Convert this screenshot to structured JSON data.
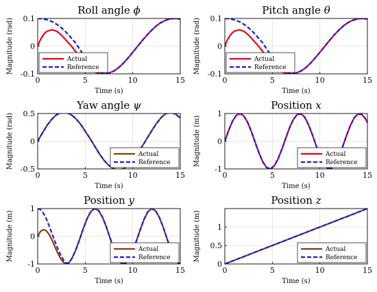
{
  "figure": {
    "colors": {
      "actual": "#e8001c",
      "reference": "#1a1ad6",
      "actual_dark": "#8a3a0a",
      "grid": "#dcdcdc"
    }
  },
  "chart_data": [
    {
      "type": "line",
      "title": "Roll angle",
      "title_symbol": "ϕ",
      "xlabel": "Time (s)",
      "ylabel": "Magnitude (rad)",
      "xlim": [
        0,
        15
      ],
      "ylim": [
        -0.1,
        0.1
      ],
      "xticks": [
        0,
        5,
        10,
        15
      ],
      "yticks": [
        -0.1,
        0,
        0.1
      ],
      "xtick_labels": [
        "0",
        "5",
        "10",
        "15"
      ],
      "ytick_labels": [
        "-0.1",
        "0",
        "0.1"
      ],
      "grid": true,
      "legend": {
        "position": "bottom-left",
        "entries": [
          "Actual",
          "Reference"
        ]
      },
      "series": [
        {
          "name": "Actual",
          "style": "solid",
          "color": "actual",
          "x": [
            0,
            0.25,
            0.5,
            0.75,
            1,
            1.5,
            2,
            2.5,
            3,
            3.5,
            4,
            4.5,
            5,
            5.5,
            6,
            6.5,
            7,
            7.5,
            8,
            8.5,
            9,
            9.5,
            10,
            10.5,
            11,
            11.5,
            12,
            12.5,
            13,
            13.5,
            14,
            14.5,
            15
          ],
          "y": [
            0,
            0.021,
            0.036,
            0.047,
            0.054,
            0.059,
            0.054,
            0.04,
            0.021,
            0.002,
            -0.02,
            -0.043,
            -0.064,
            -0.081,
            -0.093,
            -0.099,
            -0.1,
            -0.097,
            -0.09,
            -0.078,
            -0.062,
            -0.043,
            -0.022,
            -0.001,
            0.02,
            0.04,
            0.058,
            0.074,
            0.086,
            0.094,
            0.099,
            0.1,
            0.098
          ]
        },
        {
          "name": "Reference",
          "style": "dashed",
          "color": "reference",
          "x": [
            0,
            0.5,
            1,
            1.5,
            2,
            2.5,
            3,
            3.5,
            4,
            4.5,
            5,
            5.5,
            6,
            6.5,
            7,
            7.5,
            8,
            8.5,
            9,
            9.5,
            10,
            10.5,
            11,
            11.5,
            12,
            12.5,
            13,
            13.5,
            14,
            14.5,
            15
          ],
          "y": [
            0.1,
            0.099,
            0.095,
            0.089,
            0.079,
            0.066,
            0.05,
            0.031,
            0.011,
            -0.015,
            -0.042,
            -0.066,
            -0.085,
            -0.096,
            -0.1,
            -0.097,
            -0.09,
            -0.078,
            -0.062,
            -0.043,
            -0.022,
            -0.001,
            0.02,
            0.04,
            0.058,
            0.074,
            0.086,
            0.094,
            0.099,
            0.1,
            0.098
          ]
        }
      ]
    },
    {
      "type": "line",
      "title": "Pitch angle",
      "title_symbol": "θ",
      "xlabel": "Time (s)",
      "ylabel": "Magnitude (rad)",
      "xlim": [
        0,
        15
      ],
      "ylim": [
        -0.1,
        0.1
      ],
      "xticks": [
        0,
        5,
        10,
        15
      ],
      "yticks": [
        -0.1,
        0,
        0.1
      ],
      "xtick_labels": [
        "0",
        "5",
        "10",
        "15"
      ],
      "ytick_labels": [
        "-0.1",
        "0",
        "0.1"
      ],
      "grid": true,
      "legend": {
        "position": "bottom-left",
        "entries": [
          "Actual",
          "Reference"
        ]
      },
      "series": [
        {
          "name": "Actual",
          "style": "solid",
          "color": "actual",
          "x": [
            0,
            0.25,
            0.5,
            0.75,
            1,
            1.5,
            2,
            2.5,
            3,
            3.5,
            4,
            4.5,
            5,
            5.5,
            6,
            6.5,
            7,
            7.5,
            8,
            8.5,
            9,
            9.5,
            10,
            10.5,
            11,
            11.5,
            12,
            12.5,
            13,
            13.5,
            14,
            14.5,
            15
          ],
          "y": [
            0,
            0.021,
            0.036,
            0.047,
            0.054,
            0.059,
            0.054,
            0.04,
            0.021,
            0.002,
            -0.02,
            -0.043,
            -0.064,
            -0.081,
            -0.093,
            -0.099,
            -0.1,
            -0.097,
            -0.09,
            -0.078,
            -0.062,
            -0.043,
            -0.022,
            -0.001,
            0.02,
            0.04,
            0.058,
            0.074,
            0.086,
            0.094,
            0.099,
            0.1,
            0.098
          ]
        },
        {
          "name": "Reference",
          "style": "dashed",
          "color": "reference",
          "x": [
            0,
            0.5,
            1,
            1.5,
            2,
            2.5,
            3,
            3.5,
            4,
            4.5,
            5,
            5.5,
            6,
            6.5,
            7,
            7.5,
            8,
            8.5,
            9,
            9.5,
            10,
            10.5,
            11,
            11.5,
            12,
            12.5,
            13,
            13.5,
            14,
            14.5,
            15
          ],
          "y": [
            0.1,
            0.099,
            0.095,
            0.089,
            0.079,
            0.066,
            0.05,
            0.031,
            0.011,
            -0.015,
            -0.042,
            -0.066,
            -0.085,
            -0.096,
            -0.1,
            -0.097,
            -0.09,
            -0.078,
            -0.062,
            -0.043,
            -0.022,
            -0.001,
            0.02,
            0.04,
            0.058,
            0.074,
            0.086,
            0.094,
            0.099,
            0.1,
            0.098
          ]
        }
      ]
    },
    {
      "type": "line",
      "title": "Yaw angle",
      "title_symbol": "ψ",
      "xlabel": "Time (s)",
      "ylabel": "Magnitude (rad)",
      "xlim": [
        0,
        15
      ],
      "ylim": [
        -0.5,
        0.5
      ],
      "xticks": [
        0,
        5,
        10,
        15
      ],
      "yticks": [
        -0.5,
        0,
        0.5
      ],
      "xtick_labels": [
        "0",
        "5",
        "10",
        "15"
      ],
      "ytick_labels": [
        "-0.5",
        "0",
        "0.5"
      ],
      "grid": true,
      "legend": {
        "position": "bottom-right",
        "entries": [
          "Actual",
          "Reference"
        ]
      },
      "series": [
        {
          "name": "Actual",
          "style": "solid",
          "color": "actual_dark",
          "x": [
            0,
            0.5,
            1,
            1.5,
            2,
            2.5,
            3,
            3.5,
            4,
            4.5,
            5,
            5.5,
            6,
            6.5,
            7,
            7.5,
            8,
            8.5,
            9,
            9.5,
            10,
            10.5,
            11,
            11.5,
            12,
            12.5,
            13,
            13.5,
            14,
            14.5,
            15
          ],
          "y": [
            0,
            0.15,
            0.29,
            0.4,
            0.48,
            0.52,
            0.52,
            0.48,
            0.41,
            0.31,
            0.18,
            0.05,
            -0.09,
            -0.23,
            -0.35,
            -0.44,
            -0.5,
            -0.52,
            -0.5,
            -0.44,
            -0.35,
            -0.23,
            -0.09,
            0.05,
            0.19,
            0.32,
            0.43,
            0.5,
            0.52,
            0.49,
            0.42
          ]
        },
        {
          "name": "Reference",
          "style": "dashed",
          "color": "reference",
          "x": [
            0,
            0.5,
            1,
            1.5,
            2,
            2.5,
            3,
            3.5,
            4,
            4.5,
            5,
            5.5,
            6,
            6.5,
            7,
            7.5,
            8,
            8.5,
            9,
            9.5,
            10,
            10.5,
            11,
            11.5,
            12,
            12.5,
            13,
            13.5,
            14,
            14.5,
            15
          ],
          "y": [
            0,
            0.15,
            0.29,
            0.4,
            0.48,
            0.52,
            0.52,
            0.48,
            0.41,
            0.31,
            0.18,
            0.05,
            -0.09,
            -0.23,
            -0.35,
            -0.44,
            -0.5,
            -0.52,
            -0.5,
            -0.44,
            -0.35,
            -0.23,
            -0.09,
            0.05,
            0.19,
            0.32,
            0.43,
            0.5,
            0.52,
            0.49,
            0.42
          ]
        }
      ]
    },
    {
      "type": "line",
      "title": "Position",
      "title_symbol": "x",
      "xlabel": "Time (s)",
      "ylabel": "Magnitude (m)",
      "xlim": [
        0,
        15
      ],
      "ylim": [
        -1,
        1
      ],
      "xticks": [
        0,
        5,
        10,
        15
      ],
      "yticks": [
        -1,
        0,
        1
      ],
      "xtick_labels": [
        "0",
        "5",
        "10",
        "15"
      ],
      "ytick_labels": [
        "-1",
        "0",
        "1"
      ],
      "grid": true,
      "legend": {
        "position": "bottom-right",
        "entries": [
          "Actual",
          "Reference"
        ]
      },
      "series": [
        {
          "name": "Actual",
          "style": "solid",
          "color": "actual",
          "x": [
            0,
            0.4,
            0.8,
            1.2,
            1.6,
            2,
            2.4,
            2.8,
            3.2,
            3.6,
            4,
            4.4,
            4.8,
            5.2,
            5.6,
            6,
            6.4,
            6.8,
            7.2,
            7.6,
            8,
            8.4,
            8.8,
            9.2,
            9.6,
            10,
            10.4,
            10.8,
            11.2,
            11.6,
            12,
            12.4,
            12.8,
            13.2,
            13.6,
            14,
            14.4,
            14.8,
            15
          ],
          "y": [
            0,
            0.39,
            0.72,
            0.93,
            1,
            0.91,
            0.68,
            0.34,
            -0.05,
            -0.43,
            -0.75,
            -0.95,
            -1,
            -0.89,
            -0.64,
            -0.29,
            0.1,
            0.48,
            0.78,
            0.96,
            0.99,
            0.87,
            0.6,
            0.24,
            -0.15,
            -0.52,
            -0.81,
            -0.97,
            -0.98,
            -0.84,
            -0.56,
            -0.19,
            0.2,
            0.56,
            0.84,
            0.98,
            0.97,
            0.81,
            0.67
          ]
        },
        {
          "name": "Reference",
          "style": "dashed",
          "color": "reference",
          "x": [
            0,
            0.4,
            0.8,
            1.2,
            1.6,
            2,
            2.4,
            2.8,
            3.2,
            3.6,
            4,
            4.4,
            4.8,
            5.2,
            5.6,
            6,
            6.4,
            6.8,
            7.2,
            7.6,
            8,
            8.4,
            8.8,
            9.2,
            9.6,
            10,
            10.4,
            10.8,
            11.2,
            11.6,
            12,
            12.4,
            12.8,
            13.2,
            13.6,
            14,
            14.4,
            14.8,
            15
          ],
          "y": [
            0,
            0.39,
            0.72,
            0.93,
            1,
            0.91,
            0.68,
            0.34,
            -0.05,
            -0.43,
            -0.75,
            -0.95,
            -1,
            -0.89,
            -0.64,
            -0.29,
            0.1,
            0.48,
            0.78,
            0.96,
            0.99,
            0.87,
            0.6,
            0.24,
            -0.15,
            -0.52,
            -0.81,
            -0.97,
            -0.98,
            -0.84,
            -0.56,
            -0.19,
            0.2,
            0.56,
            0.84,
            0.98,
            0.97,
            0.81,
            0.67
          ]
        }
      ]
    },
    {
      "type": "line",
      "title": "Position",
      "title_symbol": "y",
      "xlabel": "Time (s)",
      "ylabel": "Magnitude (m)",
      "xlim": [
        0,
        15
      ],
      "ylim": [
        -1,
        1
      ],
      "xticks": [
        0,
        5,
        10,
        15
      ],
      "yticks": [
        -1,
        0,
        1
      ],
      "xtick_labels": [
        "0",
        "5",
        "10",
        "15"
      ],
      "ytick_labels": [
        "-1",
        "0",
        "1"
      ],
      "grid": true,
      "legend": {
        "position": "bottom-right",
        "entries": [
          "Actual",
          "Reference"
        ]
      },
      "series": [
        {
          "name": "Actual",
          "style": "solid",
          "color": "actual_dark",
          "x": [
            0,
            0.3,
            0.6,
            0.9,
            1.2,
            1.5,
            1.8,
            2.1,
            2.4,
            2.7,
            3,
            3.3,
            3.6,
            4,
            4.4,
            4.8,
            5.2,
            5.6,
            6,
            6.4,
            6.8,
            7.2,
            7.6,
            8,
            8.4,
            8.8,
            9.2,
            9.6,
            10,
            10.4,
            10.8,
            11.2,
            11.6,
            12,
            12.4,
            12.8,
            13.2,
            13.6,
            14,
            14.4,
            14.8,
            15
          ],
          "y": [
            0,
            0.18,
            0.24,
            0.2,
            0.07,
            -0.13,
            -0.37,
            -0.6,
            -0.8,
            -0.94,
            -1,
            -0.95,
            -0.8,
            -0.5,
            -0.12,
            0.28,
            0.64,
            0.9,
            1,
            0.93,
            0.7,
            0.36,
            -0.05,
            -0.45,
            -0.79,
            -0.97,
            -0.99,
            -0.84,
            -0.54,
            -0.15,
            0.25,
            0.62,
            0.89,
            1,
            0.92,
            0.68,
            0.33,
            -0.08,
            -0.48,
            -0.8,
            -0.97,
            -0.99
          ]
        },
        {
          "name": "Reference",
          "style": "dashed",
          "color": "reference",
          "x": [
            0,
            0.3,
            0.6,
            0.9,
            1.2,
            1.5,
            1.8,
            2.1,
            2.4,
            2.7,
            3,
            3.3,
            3.6,
            4,
            4.4,
            4.8,
            5.2,
            5.6,
            6,
            6.4,
            6.8,
            7.2,
            7.6,
            8,
            8.4,
            8.8,
            9.2,
            9.6,
            10,
            10.4,
            10.8,
            11.2,
            11.6,
            12,
            12.4,
            12.8,
            13.2,
            13.6,
            14,
            14.4,
            14.8,
            15
          ],
          "y": [
            1,
            0.96,
            0.83,
            0.63,
            0.38,
            0.1,
            -0.18,
            -0.44,
            -0.67,
            -0.85,
            -0.97,
            -0.95,
            -0.8,
            -0.5,
            -0.12,
            0.28,
            0.64,
            0.9,
            1,
            0.93,
            0.7,
            0.36,
            -0.05,
            -0.45,
            -0.79,
            -0.97,
            -0.99,
            -0.84,
            -0.54,
            -0.15,
            0.25,
            0.62,
            0.89,
            1,
            0.92,
            0.68,
            0.33,
            -0.08,
            -0.48,
            -0.8,
            -0.97,
            -0.99
          ]
        }
      ]
    },
    {
      "type": "line",
      "title": "Position",
      "title_symbol": "z",
      "xlabel": "Time (s)",
      "ylabel": "Magnitude (m)",
      "xlim": [
        0,
        15
      ],
      "ylim": [
        0,
        1.5
      ],
      "xticks": [
        0,
        5,
        10,
        15
      ],
      "yticks": [
        0,
        0.5,
        1
      ],
      "xtick_labels": [
        "0",
        "5",
        "10",
        "15"
      ],
      "ytick_labels": [
        "0",
        "0.5",
        "1"
      ],
      "grid": true,
      "legend": {
        "position": "bottom-right",
        "entries": [
          "Actual",
          "Reference"
        ]
      },
      "series": [
        {
          "name": "Actual",
          "style": "solid",
          "color": "actual_dark",
          "x": [
            0,
            15
          ],
          "y": [
            0,
            1.5
          ]
        },
        {
          "name": "Reference",
          "style": "dashed",
          "color": "reference",
          "x": [
            0,
            15
          ],
          "y": [
            0,
            1.5
          ]
        }
      ]
    }
  ]
}
